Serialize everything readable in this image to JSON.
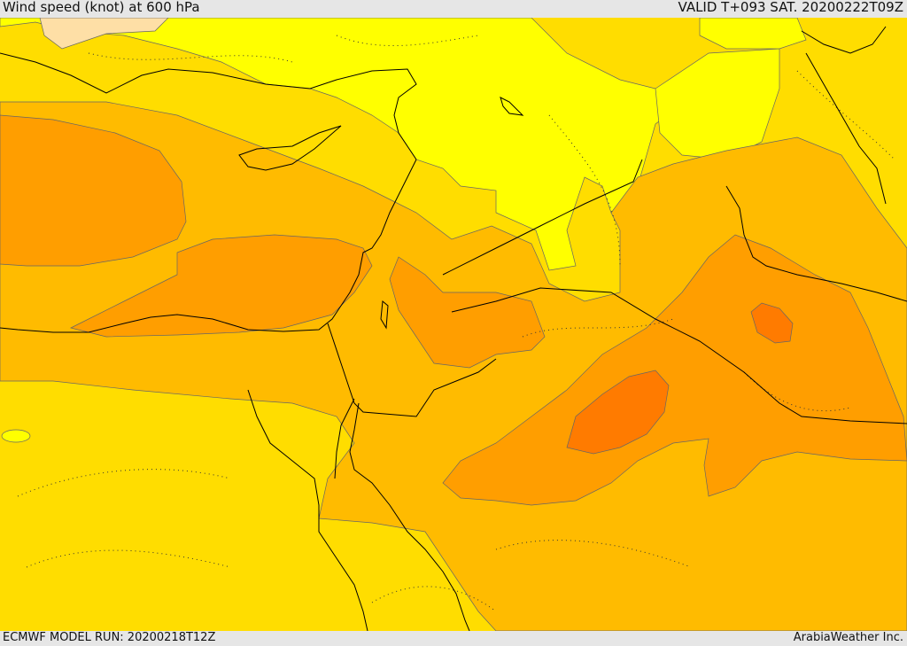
{
  "header": {
    "title": "Wind speed (knot) at 600 hPa",
    "valid": "VALID T+093 SAT. 20200222T09Z"
  },
  "footer": {
    "model_run": "ECMWF MODEL RUN: 20200218T12Z",
    "credit": "ArabiaWeather Inc."
  },
  "colors": {
    "band_light": "#ffff00",
    "band_gold": "#ffdd00",
    "band_amber": "#ffbb00",
    "band_orange": "#ff9e00",
    "band_dark_orange": "#ff7b00",
    "band_pale": "#fedfa6",
    "coastline": "#000000",
    "contour": "#555555"
  }
}
